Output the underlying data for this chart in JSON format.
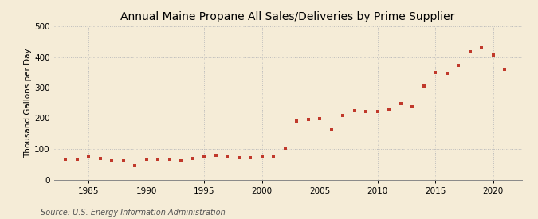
{
  "title": "Annual Maine Propane All Sales/Deliveries by Prime Supplier",
  "ylabel": "Thousand Gallons per Day",
  "source": "Source: U.S. Energy Information Administration",
  "background_color": "#f5ecd7",
  "marker_color": "#c0392b",
  "years": [
    1983,
    1984,
    1985,
    1986,
    1987,
    1988,
    1989,
    1990,
    1991,
    1992,
    1993,
    1994,
    1995,
    1996,
    1997,
    1998,
    1999,
    2000,
    2001,
    2002,
    2003,
    2004,
    2005,
    2006,
    2007,
    2008,
    2009,
    2010,
    2011,
    2012,
    2013,
    2014,
    2015,
    2016,
    2017,
    2018,
    2019,
    2020,
    2021
  ],
  "values": [
    67,
    65,
    75,
    70,
    62,
    62,
    45,
    65,
    65,
    65,
    60,
    68,
    73,
    80,
    75,
    72,
    72,
    75,
    75,
    103,
    190,
    195,
    200,
    163,
    210,
    225,
    222,
    222,
    230,
    248,
    237,
    305,
    350,
    348,
    372,
    416,
    430,
    407,
    360
  ],
  "xlim": [
    1982,
    2022.5
  ],
  "ylim": [
    0,
    500
  ],
  "yticks": [
    0,
    100,
    200,
    300,
    400,
    500
  ],
  "xticks": [
    1985,
    1990,
    1995,
    2000,
    2005,
    2010,
    2015,
    2020
  ],
  "grid_color": "#bbbbbb",
  "title_fontsize": 10,
  "label_fontsize": 7.5,
  "tick_fontsize": 7.5,
  "source_fontsize": 7
}
